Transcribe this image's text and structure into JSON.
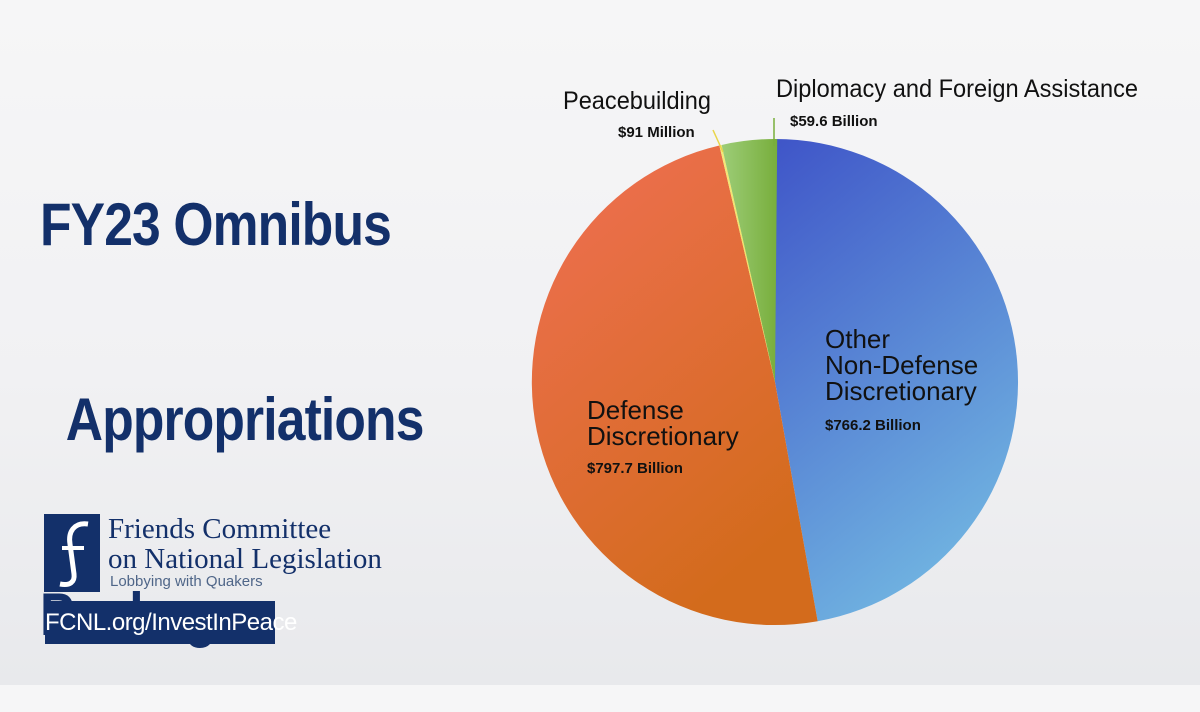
{
  "title": {
    "line1": "FY23 Omnibus",
    "line2": "Appropriations",
    "line3": "Package"
  },
  "chart_data": {
    "type": "pie",
    "unit": "Billion USD",
    "slices": [
      {
        "key": "nondefense",
        "label_lines": [
          "Other",
          "Non-Defense",
          "Discretionary"
        ],
        "value": 766.2,
        "value_label": "$766.2 Billion",
        "color_a": "#3f55c8",
        "color_b": "#6fb1e0"
      },
      {
        "key": "defense",
        "label_lines": [
          "Defense",
          "Discretionary"
        ],
        "value": 797.7,
        "value_label": "$797.7 Billion",
        "color_a": "#f06f55",
        "color_b": "#d36b1c"
      },
      {
        "key": "peace",
        "label_lines": [
          "Peacebuilding"
        ],
        "value": 0.091,
        "value_label": "$91 Million",
        "color_a": "#f4e87a",
        "color_b": "#f1dc50"
      },
      {
        "key": "diplomacy",
        "label_lines": [
          "Diplomacy and Foreign Assistance"
        ],
        "value": 59.6,
        "value_label": "$59.6 Billion",
        "color_a": "#9dcd78",
        "color_b": "#78ae3c"
      }
    ]
  },
  "logo": {
    "line1": "Friends Committee",
    "line2": "on National Legislation",
    "tagline": "Lobbying with Quakers"
  },
  "url": "FCNL.org/InvestInPeace",
  "colors": {
    "navy": "#13306a"
  }
}
